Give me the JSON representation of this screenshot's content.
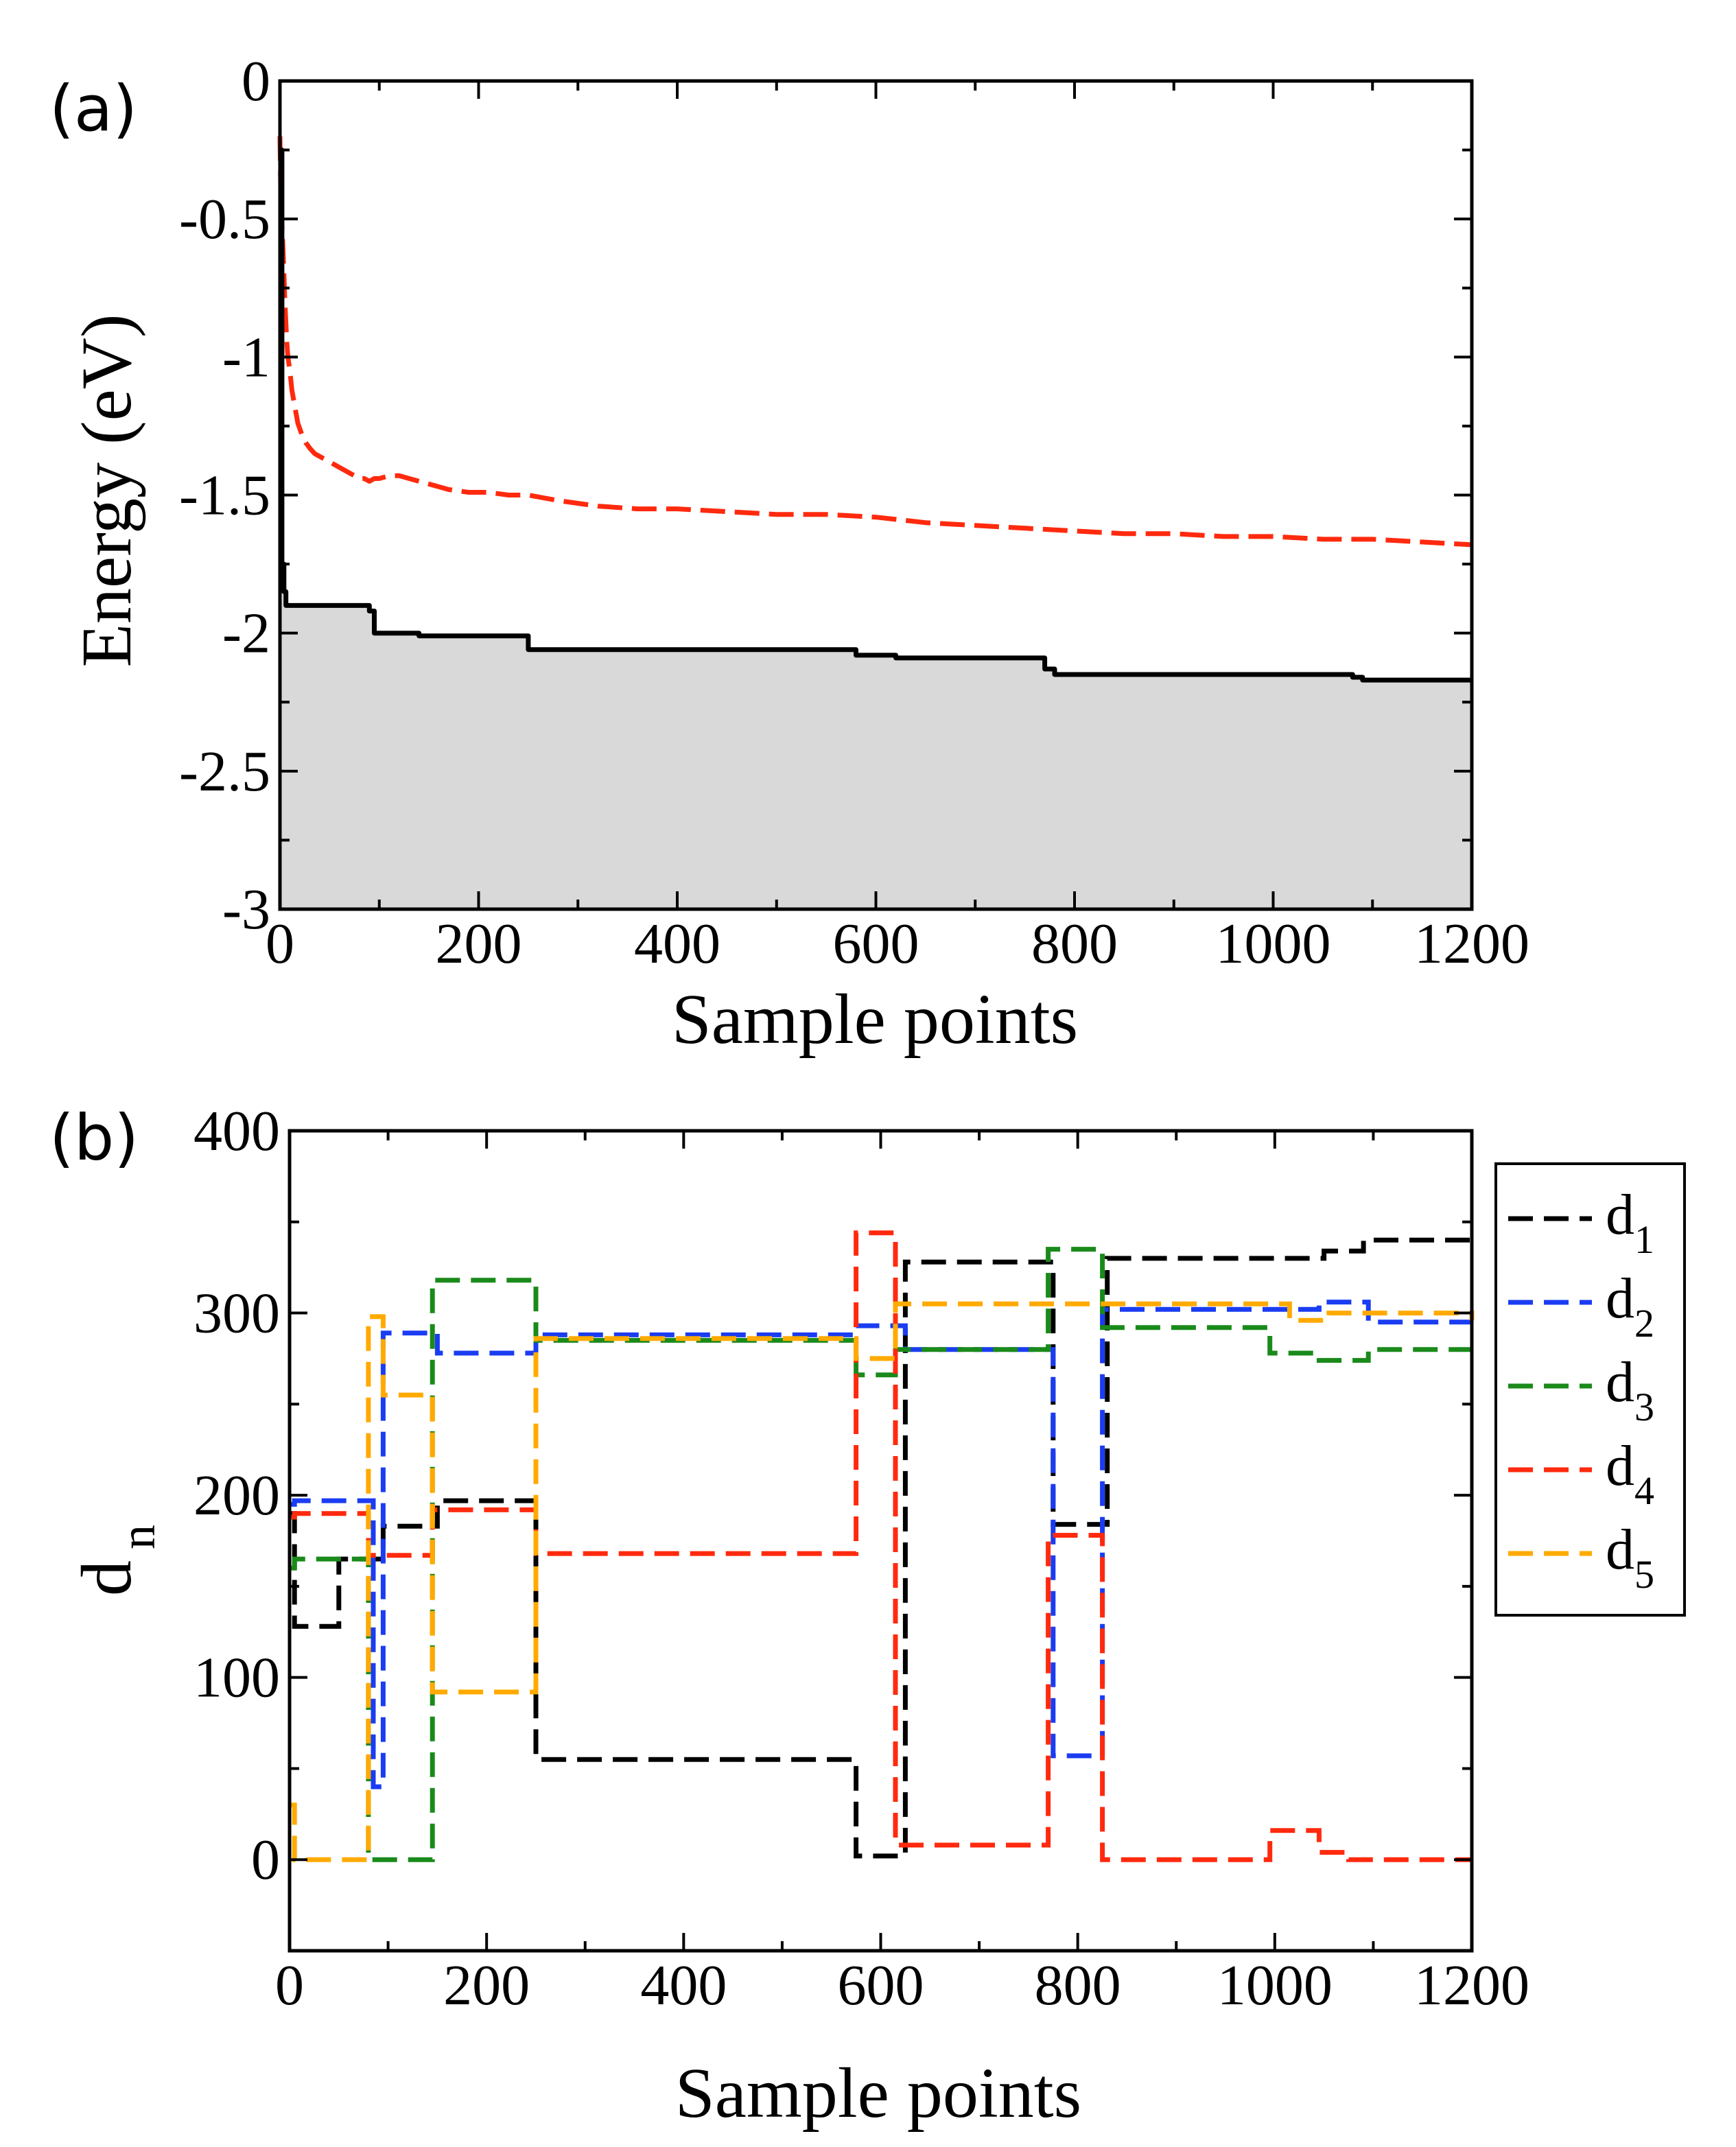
{
  "chart_data": [
    {
      "panel": "(a)",
      "type": "line",
      "xlabel": "Sample points",
      "ylabel": "Energy (eV)",
      "xlim": [
        0,
        1200
      ],
      "ylim": [
        -3,
        0
      ],
      "xticks": [
        0,
        200,
        400,
        600,
        800,
        1000,
        1200
      ],
      "yticks": [
        0,
        -0.5,
        -1,
        -1.5,
        -2,
        -2.5,
        -3
      ],
      "ytick_labels": [
        "0",
        "-0.5",
        "-1",
        "-1.5",
        "-2",
        "-2.5",
        "-3"
      ],
      "fill_below_series": "min_energy",
      "fill_color": "#d9d9d9",
      "series": [
        {
          "name": "sampled_energy",
          "color": "#ff2a0e",
          "style": "dashed",
          "x": [
            0,
            1,
            2,
            3,
            4,
            5,
            6,
            7,
            8,
            10,
            12,
            15,
            18,
            22,
            26,
            30,
            35,
            40,
            45,
            50,
            55,
            60,
            65,
            70,
            75,
            80,
            85,
            90,
            95,
            100,
            110,
            120,
            130,
            140,
            150,
            170,
            190,
            210,
            230,
            250,
            280,
            320,
            360,
            400,
            450,
            500,
            550,
            600,
            650,
            700,
            750,
            800,
            850,
            900,
            950,
            1000,
            1050,
            1100,
            1150,
            1200
          ],
          "y": [
            -0.2,
            -0.45,
            -0.52,
            -0.6,
            -0.7,
            -0.8,
            -0.88,
            -0.95,
            -1.0,
            -1.05,
            -1.12,
            -1.18,
            -1.24,
            -1.28,
            -1.31,
            -1.33,
            -1.35,
            -1.36,
            -1.37,
            -1.38,
            -1.39,
            -1.4,
            -1.41,
            -1.42,
            -1.43,
            -1.44,
            -1.44,
            -1.45,
            -1.44,
            -1.44,
            -1.43,
            -1.43,
            -1.44,
            -1.45,
            -1.46,
            -1.48,
            -1.49,
            -1.49,
            -1.5,
            -1.5,
            -1.52,
            -1.54,
            -1.55,
            -1.55,
            -1.56,
            -1.57,
            -1.57,
            -1.58,
            -1.6,
            -1.61,
            -1.62,
            -1.63,
            -1.64,
            -1.64,
            -1.65,
            -1.65,
            -1.66,
            -1.66,
            -1.67,
            -1.68
          ]
        },
        {
          "name": "min_energy",
          "color": "#000000",
          "style": "solid",
          "step": true,
          "x": [
            0,
            2,
            4,
            6,
            85,
            90,
            95,
            140,
            240,
            250,
            570,
            580,
            620,
            770,
            780,
            1080,
            1090,
            1200
          ],
          "y": [
            -0.25,
            -1.75,
            -1.85,
            -1.9,
            -1.9,
            -1.92,
            -2.0,
            -2.01,
            -2.01,
            -2.06,
            -2.06,
            -2.08,
            -2.09,
            -2.13,
            -2.15,
            -2.16,
            -2.17,
            -2.17
          ]
        }
      ]
    },
    {
      "panel": "(b)",
      "type": "line",
      "step": true,
      "xlabel": "Sample points",
      "ylabel_main": "d",
      "ylabel_sub": "n",
      "xlim": [
        0,
        1200
      ],
      "ylim": [
        -50,
        400
      ],
      "xticks": [
        0,
        200,
        400,
        600,
        800,
        1000,
        1200
      ],
      "yticks": [
        0,
        100,
        200,
        300,
        400
      ],
      "legend_position": "right",
      "series": [
        {
          "name": "d",
          "sub": "1",
          "color": "#000000",
          "x": [
            0,
            5,
            45,
            50,
            90,
            95,
            145,
            150,
            245,
            250,
            570,
            575,
            620,
            625,
            770,
            775,
            800,
            830,
            1050,
            1080,
            1090,
            1200
          ],
          "y": [
            190,
            128,
            128,
            165,
            165,
            183,
            183,
            197,
            197,
            55,
            55,
            2,
            2,
            328,
            328,
            184,
            184,
            330,
            334,
            334,
            340,
            340
          ]
        },
        {
          "name": "d",
          "sub": "2",
          "color": "#1a3cf2",
          "x": [
            0,
            5,
            80,
            85,
            90,
            95,
            145,
            150,
            245,
            250,
            570,
            575,
            620,
            625,
            770,
            775,
            820,
            825,
            1040,
            1045,
            1090,
            1095,
            1200
          ],
          "y": [
            195,
            197,
            197,
            40,
            40,
            289,
            289,
            278,
            278,
            288,
            288,
            293,
            293,
            280,
            280,
            57,
            57,
            302,
            302,
            306,
            306,
            295,
            295
          ]
        },
        {
          "name": "d",
          "sub": "3",
          "color": "#1a8a1a",
          "x": [
            0,
            5,
            75,
            80,
            90,
            95,
            140,
            145,
            245,
            250,
            570,
            575,
            610,
            615,
            765,
            770,
            820,
            825,
            990,
            995,
            1040,
            1045,
            1090,
            1095,
            1200
          ],
          "y": [
            160,
            165,
            165,
            0,
            0,
            0,
            0,
            318,
            318,
            285,
            285,
            266,
            266,
            280,
            280,
            335,
            335,
            292,
            292,
            278,
            278,
            274,
            274,
            280,
            280
          ]
        },
        {
          "name": "d",
          "sub": "4",
          "color": "#ff2a0e",
          "x": [
            0,
            5,
            75,
            80,
            140,
            145,
            245,
            250,
            570,
            575,
            610,
            615,
            765,
            770,
            820,
            825,
            990,
            995,
            1040,
            1045,
            1070,
            1075,
            1200
          ],
          "y": [
            188,
            190,
            190,
            167,
            167,
            192,
            192,
            168,
            168,
            344,
            344,
            8,
            8,
            178,
            178,
            0,
            0,
            16,
            16,
            4,
            4,
            0,
            0
          ]
        },
        {
          "name": "d",
          "sub": "5",
          "color": "#ffaa00",
          "x": [
            0,
            5,
            75,
            80,
            90,
            95,
            140,
            145,
            245,
            250,
            570,
            575,
            610,
            615,
            775,
            780,
            1010,
            1015,
            1050,
            1055,
            1200
          ],
          "y": [
            30,
            0,
            0,
            298,
            298,
            255,
            255,
            92,
            92,
            286,
            286,
            275,
            275,
            305,
            305,
            305,
            305,
            296,
            296,
            300,
            296
          ]
        }
      ]
    }
  ]
}
